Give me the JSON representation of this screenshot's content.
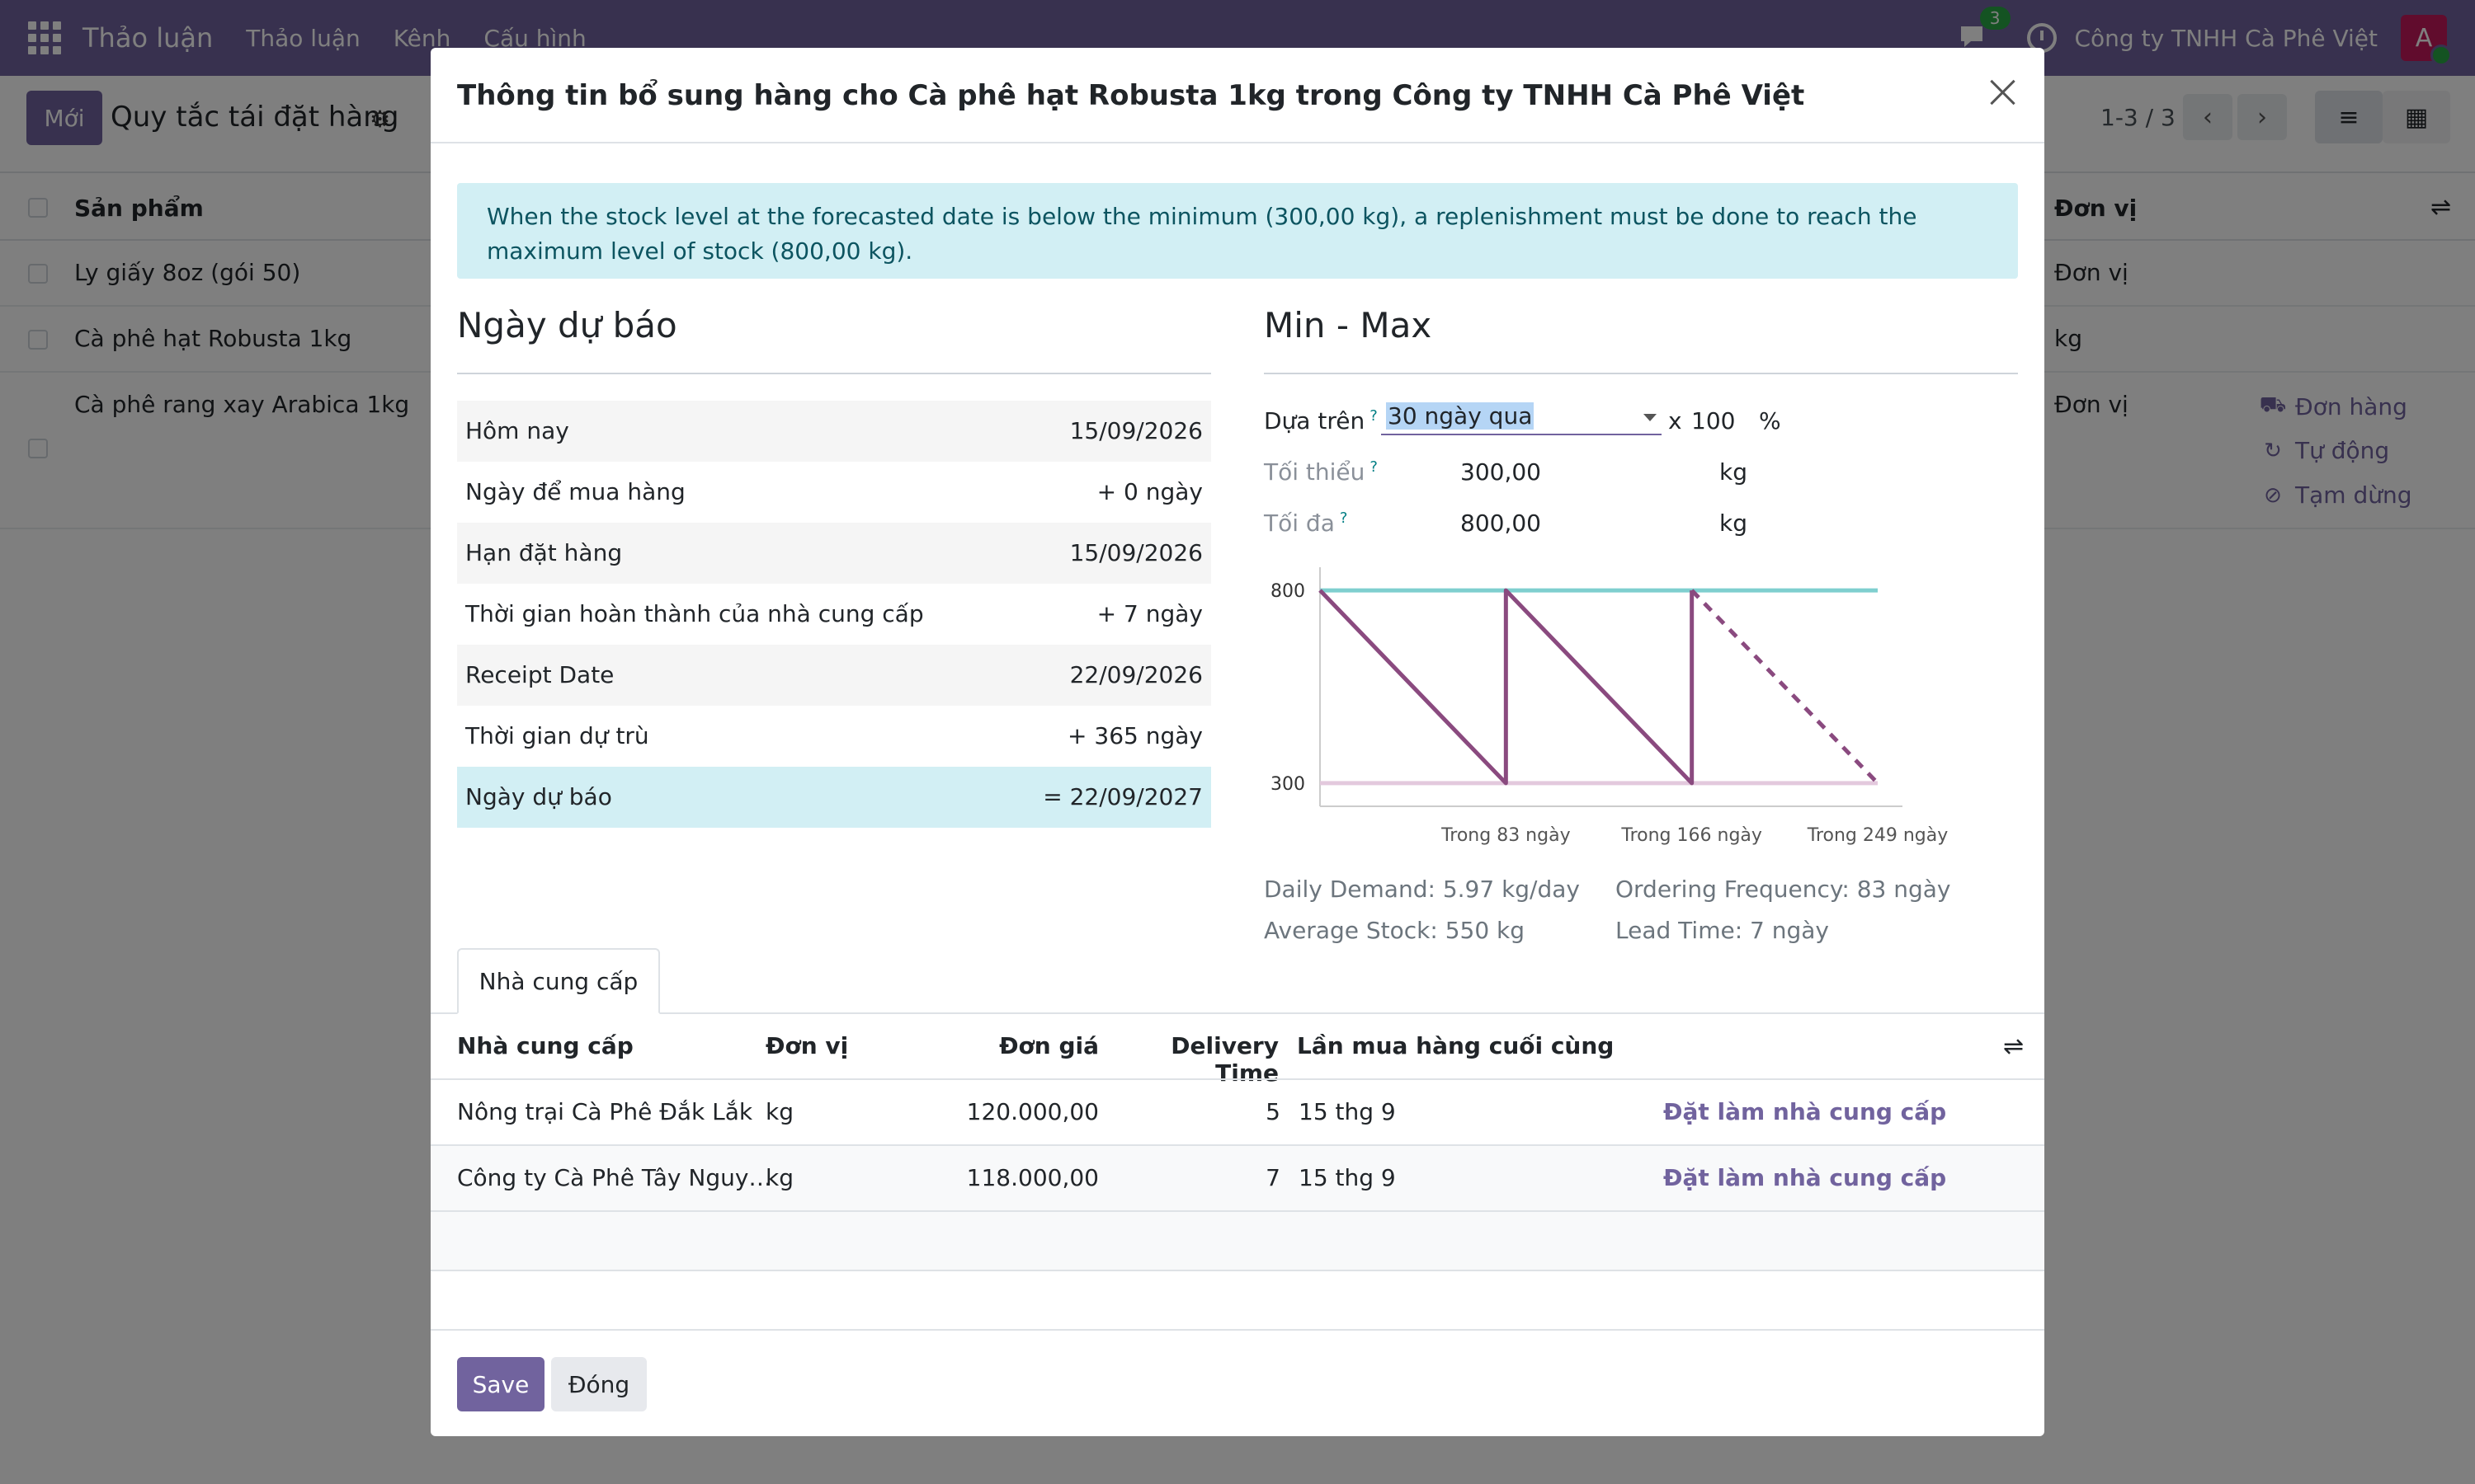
{
  "navbar": {
    "brand": "Thảo luận",
    "menu": [
      "Thảo luận",
      "Kênh",
      "Cấu hình"
    ],
    "chat_badge": "3",
    "company": "Công ty TNHH Cà Phê Việt",
    "avatar_letter": "A"
  },
  "control_panel": {
    "new_button": "Mới",
    "title": "Quy tắc tái đặt hàng",
    "pager": "1-3 / 3"
  },
  "list": {
    "header_product": "Sản phẩm",
    "header_unit": "Đơn vị",
    "rows": [
      {
        "product": "Ly giấy 8oz (gói 50)",
        "unit": "Đơn vị"
      },
      {
        "product": "Cà phê hạt Robusta 1kg",
        "unit": "kg"
      },
      {
        "product": "Cà phê rang xay Arabica 1kg",
        "unit": "Đơn vị"
      }
    ],
    "actions": [
      "Đơn hàng",
      "Tự động",
      "Tạm dừng"
    ]
  },
  "modal": {
    "title": "Thông tin bổ sung hàng cho Cà phê hạt Robusta 1kg trong Công ty TNHH Cà Phê Việt",
    "alert": "When the stock level at the forecasted date is below the minimum (300,00 kg), a replenishment must be done to reach the maximum level of stock (800,00 kg).",
    "forecast": {
      "title": "Ngày dự báo",
      "rows": [
        {
          "label": "Hôm nay",
          "value": "15/09/2026"
        },
        {
          "label": "Ngày để mua hàng",
          "value": "+ 0 ngày"
        },
        {
          "label": "Hạn đặt hàng",
          "value": "15/09/2026"
        },
        {
          "label": "Thời gian hoàn thành của nhà cung cấp",
          "value": "+ 7 ngày"
        },
        {
          "label": "Receipt Date",
          "value": "22/09/2026"
        },
        {
          "label": "Thời gian dự trù",
          "value": "+ 365 ngày"
        },
        {
          "label": "Ngày dự báo",
          "value": "= 22/09/2027"
        }
      ]
    },
    "minmax": {
      "title": "Min - Max",
      "based_on_label": "Dựa trên",
      "based_on_value": "30 ngày qua",
      "multiplier_x": "x",
      "percent_value": "100",
      "percent_sign": "%",
      "min_label": "Tối thiểu",
      "min_value": "300,00",
      "min_unit": "kg",
      "max_label": "Tối đa",
      "max_value": "800,00",
      "max_unit": "kg",
      "qmark": "?"
    },
    "stats": {
      "daily_demand": "Daily Demand: 5.97 kg/day",
      "ordering_frequency": "Ordering Frequency: 83 ngày",
      "average_stock": "Average Stock: 550 kg",
      "lead_time": "Lead Time: 7 ngày"
    },
    "vendors": {
      "tab": "Nhà cung cấp",
      "columns": [
        "Nhà cung cấp",
        "Đơn vị",
        "Đơn giá",
        "Delivery Time",
        "Lần mua hàng cuối cùng"
      ],
      "rows": [
        {
          "vendor": "Nông trại Cà Phê Đắk Lắk",
          "unit": "kg",
          "price": "120.000,00",
          "delivery": "5",
          "last": "15 thg 9",
          "action": "Đặt làm nhà cung cấp"
        },
        {
          "vendor": "Công ty Cà Phê Tây Nguy…",
          "unit": "kg",
          "price": "118.000,00",
          "delivery": "7",
          "last": "15 thg 9",
          "action": "Đặt làm nhà cung cấp"
        }
      ]
    },
    "footer": {
      "save": "Save",
      "close": "Đóng"
    }
  },
  "colors": {
    "brand": "#71639e",
    "max_line": "#7fcfcf",
    "min_line": "#e3c9dd",
    "stock_line": "#8a4a7f"
  },
  "chart_data": {
    "type": "line",
    "y_ticks": [
      800,
      300
    ],
    "x_ticks": [
      "Trong 83 ngày",
      "Trong 166 ngày",
      "Trong 249 ngày"
    ],
    "min_level": 300,
    "max_level": 800,
    "series": [
      {
        "x": [
          0,
          83,
          83,
          166,
          166
        ],
        "y": [
          800,
          300,
          800,
          300,
          800
        ],
        "style": "solid"
      },
      {
        "x": [
          166,
          249
        ],
        "y": [
          800,
          300
        ],
        "style": "dashed"
      }
    ],
    "xlim": [
      0,
      249
    ],
    "ylim": [
      240,
      860
    ]
  }
}
